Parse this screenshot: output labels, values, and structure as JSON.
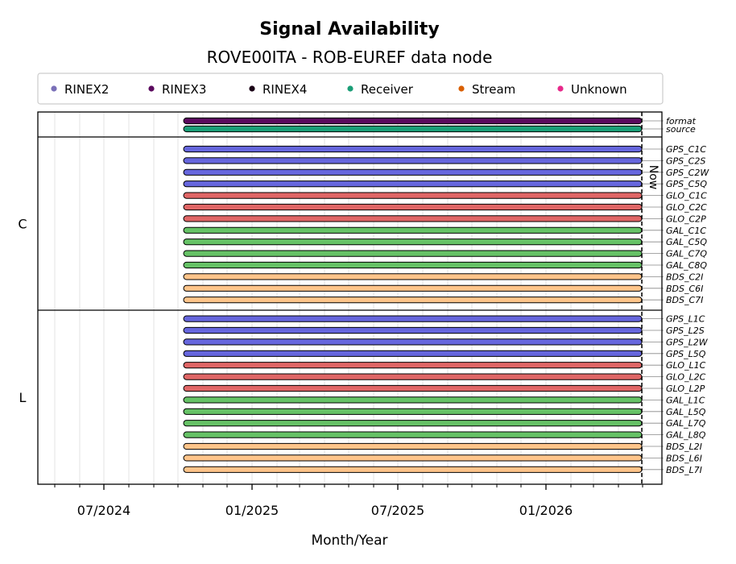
{
  "chart_data": {
    "type": "timeline",
    "title": "Signal Availability",
    "subtitle": "ROVE00ITA - ROB-EUREF data node",
    "xlabel": "Month/Year",
    "x_range": [
      "2024-04-10",
      "2026-05-25"
    ],
    "x_ticks": [
      {
        "date": "2024-07-01",
        "label": "07/2024"
      },
      {
        "date": "2025-01-01",
        "label": "01/2025"
      },
      {
        "date": "2025-07-01",
        "label": "07/2025"
      },
      {
        "date": "2026-01-01",
        "label": "01/2026"
      }
    ],
    "now_date": "2026-04-30",
    "now_label": "Now",
    "legend": [
      {
        "label": "RINEX2",
        "color": "#7a70b8"
      },
      {
        "label": "RINEX3",
        "color": "#5b0a5e"
      },
      {
        "label": "RINEX4",
        "color": "#1a0016"
      },
      {
        "label": "Receiver",
        "color": "#1b9e77"
      },
      {
        "label": "Stream",
        "color": "#d95f02"
      },
      {
        "label": "Unknown",
        "color": "#e7298a"
      }
    ],
    "groups": [
      {
        "label": "",
        "rows": [
          {
            "name": "format",
            "start": "2024-10-08",
            "end": "2026-04-30",
            "color": "#5b0a5e"
          },
          {
            "name": "source",
            "start": "2024-10-08",
            "end": "2026-04-30",
            "color": "#1b9e77"
          }
        ]
      },
      {
        "label": "C",
        "rows": [
          {
            "name": "GPS_C1C",
            "start": "2024-10-08",
            "end": "2026-04-30",
            "color": "#6666dd"
          },
          {
            "name": "GPS_C2S",
            "start": "2024-10-08",
            "end": "2026-04-30",
            "color": "#6666dd"
          },
          {
            "name": "GPS_C2W",
            "start": "2024-10-08",
            "end": "2026-04-30",
            "color": "#6666dd"
          },
          {
            "name": "GPS_C5Q",
            "start": "2024-10-08",
            "end": "2026-04-30",
            "color": "#6666dd"
          },
          {
            "name": "GLO_C1C",
            "start": "2024-10-08",
            "end": "2026-04-30",
            "color": "#e06666"
          },
          {
            "name": "GLO_C2C",
            "start": "2024-10-08",
            "end": "2026-04-30",
            "color": "#e06666"
          },
          {
            "name": "GLO_C2P",
            "start": "2024-10-08",
            "end": "2026-04-30",
            "color": "#e06666"
          },
          {
            "name": "GAL_C1C",
            "start": "2024-10-08",
            "end": "2026-04-30",
            "color": "#66c266"
          },
          {
            "name": "GAL_C5Q",
            "start": "2024-10-08",
            "end": "2026-04-30",
            "color": "#66c266"
          },
          {
            "name": "GAL_C7Q",
            "start": "2024-10-08",
            "end": "2026-04-30",
            "color": "#66c266"
          },
          {
            "name": "GAL_C8Q",
            "start": "2024-10-08",
            "end": "2026-04-30",
            "color": "#66c266"
          },
          {
            "name": "BDS_C2I",
            "start": "2024-10-08",
            "end": "2026-04-30",
            "color": "#ffc48a"
          },
          {
            "name": "BDS_C6I",
            "start": "2024-10-08",
            "end": "2026-04-30",
            "color": "#ffc48a"
          },
          {
            "name": "BDS_C7I",
            "start": "2024-10-08",
            "end": "2026-04-30",
            "color": "#ffc48a"
          }
        ]
      },
      {
        "label": "L",
        "rows": [
          {
            "name": "GPS_L1C",
            "start": "2024-10-08",
            "end": "2026-04-30",
            "color": "#6666dd"
          },
          {
            "name": "GPS_L2S",
            "start": "2024-10-08",
            "end": "2026-04-30",
            "color": "#6666dd"
          },
          {
            "name": "GPS_L2W",
            "start": "2024-10-08",
            "end": "2026-04-30",
            "color": "#6666dd"
          },
          {
            "name": "GPS_L5Q",
            "start": "2024-10-08",
            "end": "2026-04-30",
            "color": "#6666dd"
          },
          {
            "name": "GLO_L1C",
            "start": "2024-10-08",
            "end": "2026-04-30",
            "color": "#e06666"
          },
          {
            "name": "GLO_L2C",
            "start": "2024-10-08",
            "end": "2026-04-30",
            "color": "#e06666"
          },
          {
            "name": "GLO_L2P",
            "start": "2024-10-08",
            "end": "2026-04-30",
            "color": "#e06666"
          },
          {
            "name": "GAL_L1C",
            "start": "2024-10-08",
            "end": "2026-04-30",
            "color": "#66c266"
          },
          {
            "name": "GAL_L5Q",
            "start": "2024-10-08",
            "end": "2026-04-30",
            "color": "#66c266"
          },
          {
            "name": "GAL_L7Q",
            "start": "2024-10-08",
            "end": "2026-04-30",
            "color": "#66c266"
          },
          {
            "name": "GAL_L8Q",
            "start": "2024-10-08",
            "end": "2026-04-30",
            "color": "#66c266"
          },
          {
            "name": "BDS_L2I",
            "start": "2024-10-08",
            "end": "2026-04-30",
            "color": "#ffc48a"
          },
          {
            "name": "BDS_L6I",
            "start": "2024-10-08",
            "end": "2026-04-30",
            "color": "#ffc48a"
          },
          {
            "name": "BDS_L7I",
            "start": "2024-10-08",
            "end": "2026-04-30",
            "color": "#ffc48a"
          }
        ]
      }
    ]
  }
}
